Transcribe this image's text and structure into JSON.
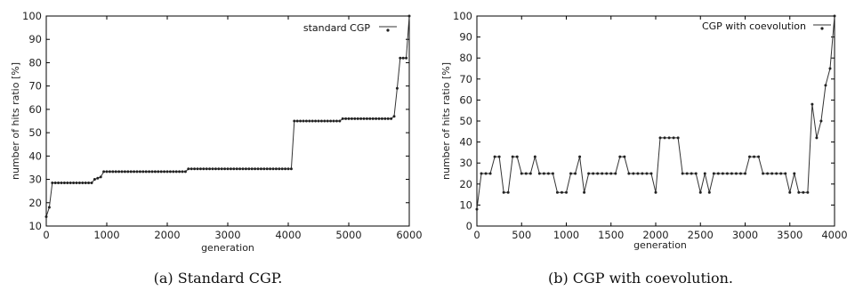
{
  "chart_data": [
    {
      "type": "line",
      "caption": "(a) Standard CGP.",
      "xlabel": "generation",
      "ylabel": "number of hits ratio [%]",
      "xlim": [
        0,
        6000
      ],
      "ylim": [
        10,
        100
      ],
      "xticks": [
        "0",
        "1000",
        "2000",
        "3000",
        "4000",
        "5000",
        "6000"
      ],
      "yticks": [
        "10",
        "20",
        "30",
        "40",
        "50",
        "60",
        "70",
        "80",
        "90",
        "100"
      ],
      "grid": false,
      "legend_position": "top-right",
      "series": [
        {
          "name": "standard CGP",
          "steps": [
            [
              0,
              14
            ],
            [
              30,
              18
            ],
            [
              80,
              28.5
            ],
            [
              700,
              28.5
            ],
            [
              760,
              29
            ],
            [
              800,
              30
            ],
            [
              850,
              30.5
            ],
            [
              900,
              31
            ],
            [
              950,
              33.3
            ],
            [
              2300,
              33.3
            ],
            [
              2350,
              34.5
            ],
            [
              4050,
              34.5
            ],
            [
              4100,
              55
            ],
            [
              4850,
              55
            ],
            [
              4900,
              56
            ],
            [
              5700,
              56
            ],
            [
              5750,
              57
            ],
            [
              5800,
              69
            ],
            [
              5850,
              82
            ],
            [
              5950,
              82
            ],
            [
              6000,
              100
            ]
          ]
        }
      ]
    },
    {
      "type": "line",
      "caption": "(b) CGP with coevolution.",
      "xlabel": "generation",
      "ylabel": "number of hits ratio [%]",
      "xlim": [
        0,
        4000
      ],
      "ylim": [
        0,
        100
      ],
      "xticks": [
        "0",
        "500",
        "1000",
        "1500",
        "2000",
        "2500",
        "3000",
        "3500",
        "4000"
      ],
      "yticks": [
        "0",
        "10",
        "20",
        "30",
        "40",
        "50",
        "60",
        "70",
        "80",
        "90",
        "100"
      ],
      "grid": false,
      "legend_position": "top-right",
      "series": [
        {
          "name": "CGP with coevolution",
          "x": [
            0,
            50,
            100,
            150,
            200,
            250,
            300,
            350,
            400,
            450,
            500,
            550,
            600,
            650,
            700,
            750,
            800,
            850,
            900,
            950,
            1000,
            1050,
            1100,
            1150,
            1200,
            1250,
            1300,
            1350,
            1400,
            1450,
            1500,
            1550,
            1600,
            1650,
            1700,
            1750,
            1800,
            1850,
            1900,
            1950,
            2000,
            2050,
            2100,
            2150,
            2200,
            2250,
            2300,
            2350,
            2400,
            2450,
            2500,
            2550,
            2600,
            2650,
            2700,
            2750,
            2800,
            2850,
            2900,
            2950,
            3000,
            3050,
            3100,
            3150,
            3200,
            3250,
            3300,
            3350,
            3400,
            3450,
            3500,
            3550,
            3600,
            3650,
            3700,
            3750,
            3800,
            3850,
            3900,
            3950,
            4000
          ],
          "y": [
            8,
            25,
            25,
            25,
            33,
            33,
            16,
            16,
            33,
            33,
            25,
            25,
            25,
            33,
            25,
            25,
            25,
            25,
            16,
            16,
            16,
            25,
            25,
            33,
            16,
            25,
            25,
            25,
            25,
            25,
            25,
            25,
            33,
            33,
            25,
            25,
            25,
            25,
            25,
            25,
            16,
            42,
            42,
            42,
            42,
            42,
            25,
            25,
            25,
            25,
            16,
            25,
            16,
            25,
            25,
            25,
            25,
            25,
            25,
            25,
            25,
            33,
            33,
            33,
            25,
            25,
            25,
            25,
            25,
            25,
            16,
            25,
            16,
            16,
            16,
            58,
            42,
            50,
            67,
            75,
            100
          ]
        }
      ]
    }
  ]
}
